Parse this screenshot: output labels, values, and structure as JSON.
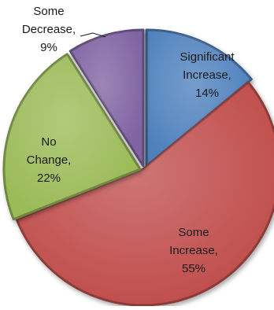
{
  "chart_data": {
    "type": "pie",
    "style": "3d",
    "title": "",
    "series": [
      {
        "name": "",
        "slices": [
          {
            "label_lines": [
              "Significant",
              "Increase,",
              "14%"
            ],
            "value": 14,
            "color": "#4f81bd"
          },
          {
            "label_lines": [
              "Some",
              "Increase,",
              "55%"
            ],
            "value": 55,
            "color": "#c0504d"
          },
          {
            "label_lines": [
              "No",
              "Change,",
              "22%"
            ],
            "value": 22,
            "color": "#9bbb59"
          },
          {
            "label_lines": [
              "Some",
              "Decrease,",
              "9%"
            ],
            "value": 9,
            "color": "#8064a2"
          }
        ]
      }
    ],
    "legend": "none"
  }
}
